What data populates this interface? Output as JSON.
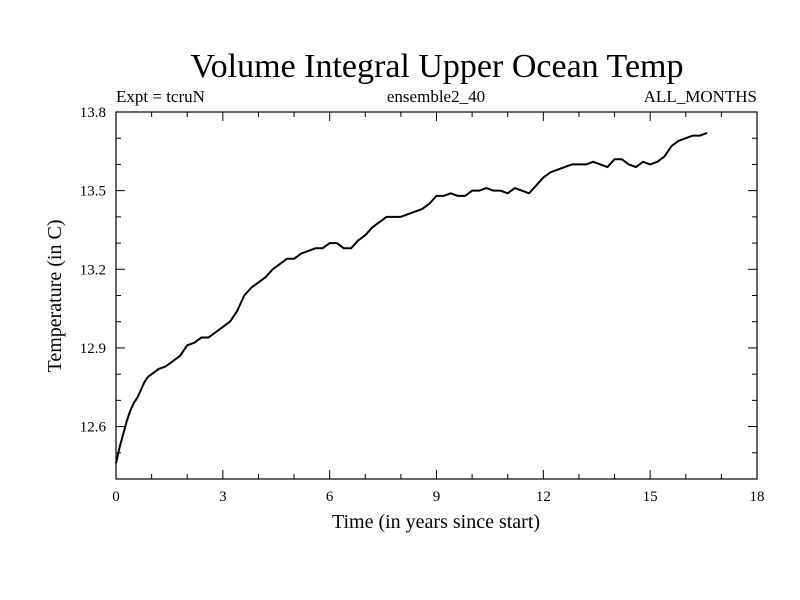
{
  "chart_data": {
    "type": "line",
    "title": "Volume Integral Upper Ocean Temp",
    "subtitle_left": "Expt = tcruN",
    "subtitle_center": "ensemble2_40",
    "subtitle_right": "ALL_MONTHS",
    "xlabel": "Time (in years since start)",
    "ylabel": "Temperature (in C)",
    "xlim": [
      0,
      18
    ],
    "ylim": [
      12.4,
      13.8
    ],
    "xticks": [
      0,
      3,
      6,
      9,
      12,
      15,
      18
    ],
    "xtick_labels": [
      "0",
      "3",
      "6",
      "9",
      "12",
      "15",
      "18"
    ],
    "yticks": [
      12.6,
      12.9,
      13.2,
      13.5,
      13.8
    ],
    "ytick_labels": [
      "12.6",
      "12.9",
      "13.2",
      "13.5",
      "13.8"
    ],
    "grid": false,
    "series": [
      {
        "name": "Volume Integral Upper Ocean Temp",
        "color": "#000000",
        "x": [
          0.0,
          0.1,
          0.2,
          0.3,
          0.4,
          0.5,
          0.6,
          0.7,
          0.8,
          0.9,
          1.0,
          1.2,
          1.4,
          1.6,
          1.8,
          2.0,
          2.2,
          2.4,
          2.6,
          2.8,
          3.0,
          3.2,
          3.4,
          3.6,
          3.8,
          4.0,
          4.2,
          4.4,
          4.6,
          4.8,
          5.0,
          5.2,
          5.4,
          5.6,
          5.8,
          6.0,
          6.2,
          6.4,
          6.6,
          6.8,
          7.0,
          7.2,
          7.4,
          7.6,
          7.8,
          8.0,
          8.2,
          8.4,
          8.6,
          8.8,
          9.0,
          9.2,
          9.4,
          9.6,
          9.8,
          10.0,
          10.2,
          10.4,
          10.6,
          10.8,
          11.0,
          11.2,
          11.4,
          11.6,
          11.8,
          12.0,
          12.2,
          12.4,
          12.6,
          12.8,
          13.0,
          13.2,
          13.4,
          13.6,
          13.8,
          14.0,
          14.2,
          14.4,
          14.6,
          14.8,
          15.0,
          15.2,
          15.4,
          15.6,
          15.8,
          16.0,
          16.2,
          16.4,
          16.6
        ],
        "values": [
          12.46,
          12.52,
          12.57,
          12.62,
          12.66,
          12.69,
          12.71,
          12.74,
          12.77,
          12.79,
          12.8,
          12.82,
          12.83,
          12.85,
          12.87,
          12.91,
          12.92,
          12.94,
          12.94,
          12.96,
          12.98,
          13.0,
          13.04,
          13.1,
          13.13,
          13.15,
          13.17,
          13.2,
          13.22,
          13.24,
          13.24,
          13.26,
          13.27,
          13.28,
          13.28,
          13.3,
          13.3,
          13.28,
          13.28,
          13.31,
          13.33,
          13.36,
          13.38,
          13.4,
          13.4,
          13.4,
          13.41,
          13.42,
          13.43,
          13.45,
          13.48,
          13.48,
          13.49,
          13.48,
          13.48,
          13.5,
          13.5,
          13.51,
          13.5,
          13.5,
          13.49,
          13.51,
          13.5,
          13.49,
          13.52,
          13.55,
          13.57,
          13.58,
          13.59,
          13.6,
          13.6,
          13.6,
          13.61,
          13.6,
          13.59,
          13.62,
          13.62,
          13.6,
          13.59,
          13.61,
          13.6,
          13.61,
          13.63,
          13.67,
          13.69,
          13.7,
          13.71,
          13.71,
          13.72
        ]
      }
    ]
  }
}
